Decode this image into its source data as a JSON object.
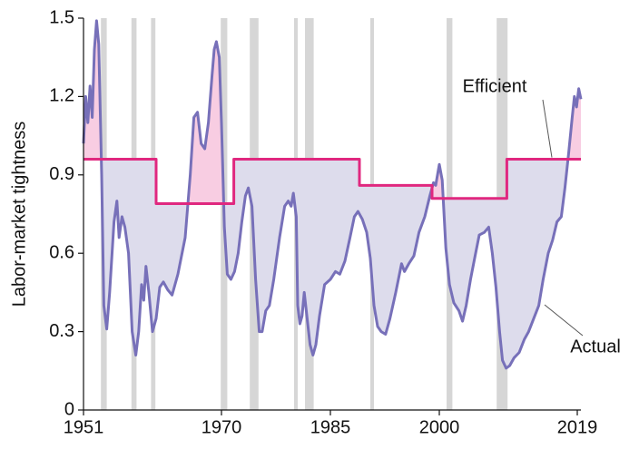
{
  "chart_data": {
    "type": "line",
    "ylabel": "Labor-market tightness",
    "xlim": [
      1951,
      2019.5
    ],
    "xticks": [
      1951,
      1970,
      1985,
      2000,
      2019
    ],
    "ylim": [
      0,
      1.5
    ],
    "yticks": [
      0,
      0.3,
      0.6,
      0.9,
      1.2,
      1.5
    ],
    "recessions": [
      [
        1953.4,
        1954.2
      ],
      [
        1957.6,
        1958.3
      ],
      [
        1960.3,
        1960.9
      ],
      [
        1969.9,
        1970.8
      ],
      [
        1973.9,
        1975.1
      ],
      [
        1980.0,
        1980.5
      ],
      [
        1981.5,
        1982.7
      ],
      [
        1990.5,
        1991.0
      ],
      [
        2001.0,
        2001.8
      ],
      [
        2007.9,
        2009.4
      ]
    ],
    "recession_color": "#d6d6d6",
    "fill_above_color": "#f8cde2",
    "fill_below_color": "#dddcec",
    "series": [
      {
        "name": "Actual",
        "color": "#7770b9",
        "x": [
          1951.0,
          1951.3,
          1951.6,
          1951.9,
          1952.2,
          1952.5,
          1952.8,
          1953.1,
          1953.5,
          1953.8,
          1954.2,
          1954.6,
          1955.2,
          1955.6,
          1955.9,
          1956.3,
          1956.7,
          1957.2,
          1957.7,
          1958.2,
          1958.6,
          1959.0,
          1959.3,
          1959.6,
          1960.0,
          1960.5,
          1961.0,
          1961.5,
          1962.0,
          1962.6,
          1963.2,
          1964.0,
          1965.0,
          1965.7,
          1966.2,
          1966.7,
          1967.2,
          1967.7,
          1968.2,
          1968.7,
          1969.0,
          1969.3,
          1969.7,
          1970.0,
          1970.4,
          1970.8,
          1971.3,
          1971.8,
          1972.3,
          1972.8,
          1973.3,
          1973.7,
          1974.2,
          1974.7,
          1975.2,
          1975.6,
          1976.1,
          1976.6,
          1977.2,
          1978.0,
          1978.7,
          1979.2,
          1979.6,
          1979.9,
          1980.3,
          1980.5,
          1980.8,
          1981.1,
          1981.4,
          1981.8,
          1982.2,
          1982.6,
          1983.0,
          1983.5,
          1984.2,
          1985.0,
          1985.7,
          1986.3,
          1987.0,
          1987.7,
          1988.3,
          1988.8,
          1989.4,
          1990.0,
          1990.5,
          1991.0,
          1991.5,
          1992.0,
          1992.6,
          1993.2,
          1994.0,
          1994.8,
          1995.2,
          1995.8,
          1996.5,
          1997.2,
          1998.0,
          1998.7,
          1999.2,
          1999.5,
          2000.0,
          2000.4,
          2000.9,
          2001.4,
          2002.0,
          2002.7,
          2003.2,
          2003.7,
          2004.3,
          2005.0,
          2005.5,
          2006.2,
          2006.8,
          2007.3,
          2007.8,
          2008.3,
          2008.7,
          2009.2,
          2009.7,
          2010.3,
          2011.0,
          2011.7,
          2012.3,
          2013.0,
          2013.7,
          2014.3,
          2015.0,
          2015.6,
          2016.2,
          2016.8,
          2017.3,
          2017.8,
          2018.3,
          2018.6,
          2018.9,
          2019.2,
          2019.5
        ],
        "values": [
          1.02,
          1.2,
          1.1,
          1.24,
          1.12,
          1.38,
          1.49,
          1.4,
          0.9,
          0.4,
          0.31,
          0.45,
          0.72,
          0.8,
          0.66,
          0.74,
          0.7,
          0.6,
          0.3,
          0.21,
          0.3,
          0.48,
          0.42,
          0.55,
          0.45,
          0.3,
          0.35,
          0.47,
          0.49,
          0.46,
          0.44,
          0.52,
          0.66,
          0.9,
          1.12,
          1.14,
          1.02,
          1.0,
          1.1,
          1.28,
          1.38,
          1.41,
          1.35,
          1.1,
          0.7,
          0.52,
          0.5,
          0.53,
          0.6,
          0.72,
          0.82,
          0.85,
          0.78,
          0.5,
          0.3,
          0.3,
          0.38,
          0.4,
          0.5,
          0.66,
          0.78,
          0.8,
          0.78,
          0.83,
          0.74,
          0.4,
          0.33,
          0.36,
          0.45,
          0.35,
          0.25,
          0.21,
          0.25,
          0.36,
          0.48,
          0.5,
          0.53,
          0.52,
          0.57,
          0.66,
          0.74,
          0.76,
          0.73,
          0.68,
          0.58,
          0.4,
          0.32,
          0.3,
          0.29,
          0.35,
          0.45,
          0.56,
          0.53,
          0.56,
          0.59,
          0.68,
          0.74,
          0.82,
          0.87,
          0.86,
          0.94,
          0.88,
          0.62,
          0.48,
          0.41,
          0.38,
          0.34,
          0.4,
          0.5,
          0.6,
          0.67,
          0.68,
          0.7,
          0.6,
          0.47,
          0.3,
          0.19,
          0.16,
          0.17,
          0.2,
          0.22,
          0.27,
          0.3,
          0.35,
          0.4,
          0.5,
          0.6,
          0.65,
          0.72,
          0.74,
          0.85,
          0.98,
          1.12,
          1.2,
          1.16,
          1.23,
          1.19
        ]
      },
      {
        "name": "Efficient",
        "color": "#e0287f",
        "x": [
          1951,
          1961,
          1961,
          1971.7,
          1971.7,
          1989,
          1989,
          1999,
          1999,
          2009.3,
          2009.3,
          2019.5
        ],
        "values": [
          0.96,
          0.96,
          0.79,
          0.79,
          0.96,
          0.96,
          0.86,
          0.86,
          0.81,
          0.81,
          0.96,
          0.96
        ]
      }
    ]
  }
}
